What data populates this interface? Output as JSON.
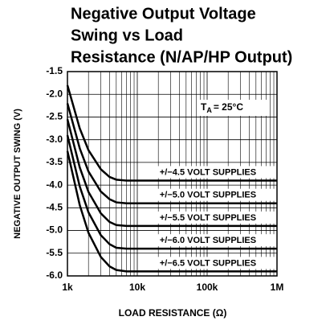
{
  "chart_data": {
    "type": "line",
    "title": [
      "Negative Output Voltage",
      "Swing vs Load",
      "Resistance (N/AP/HP Output)"
    ],
    "x_label": "LOAD RESISTANCE (Ω)",
    "y_label": "NEGATIVE OUTPUT SWING (V)",
    "annotation": [
      "T",
      "A",
      "= 25°C"
    ],
    "x": [
      1000,
      1500,
      2000,
      3000,
      4000,
      5000,
      7000,
      10000,
      100000,
      1000000
    ],
    "series": [
      {
        "name": "+/−4.5 VOLT SUPPLIES",
        "color": "#000000",
        "values": [
          -1.8,
          -2.75,
          -3.23,
          -3.65,
          -3.82,
          -3.88,
          -3.9,
          -3.9,
          -3.9,
          -3.9
        ]
      },
      {
        "name": "+/−5.0 VOLT SUPPLIES",
        "color": "#000000",
        "values": [
          -2.2,
          -3.19,
          -3.7,
          -4.14,
          -4.31,
          -4.38,
          -4.4,
          -4.4,
          -4.4,
          -4.4
        ]
      },
      {
        "name": "+/−5.5 VOLT SUPPLIES",
        "color": "#000000",
        "values": [
          -2.55,
          -3.61,
          -4.15,
          -4.62,
          -4.81,
          -4.88,
          -4.9,
          -4.9,
          -4.9,
          -4.9
        ]
      },
      {
        "name": "+/−6.0 VOLT SUPPLIES",
        "color": "#000000",
        "values": [
          -2.9,
          -4.03,
          -4.6,
          -5.1,
          -5.3,
          -5.38,
          -5.4,
          -5.4,
          -5.4,
          -5.4
        ]
      },
      {
        "name": "+/−6.5 VOLT SUPPLIES",
        "color": "#000000",
        "values": [
          -3.25,
          -4.44,
          -5.05,
          -5.58,
          -5.79,
          -5.87,
          -5.9,
          -5.9,
          -5.9,
          -5.9
        ]
      }
    ],
    "xlim": [
      1000,
      1000000
    ],
    "xscale": "log",
    "xticks": [
      {
        "value": 1000,
        "label": "1k"
      },
      {
        "value": 10000,
        "label": "10k"
      },
      {
        "value": 100000,
        "label": "100k"
      },
      {
        "value": 1000000,
        "label": "1M"
      }
    ],
    "ylim": [
      -6.0,
      -1.5
    ],
    "yticks": [
      -1.5,
      {
        "value": -2,
        "label": "-2.0"
      },
      -2.5,
      {
        "value": -3,
        "label": "-3.0"
      },
      -3.5,
      {
        "value": -4,
        "label": "-4.0"
      },
      -4.5,
      {
        "value": -5,
        "label": "-5.0"
      },
      -5.5,
      {
        "value": -6,
        "label": "-6.0"
      }
    ],
    "grid": true
  }
}
